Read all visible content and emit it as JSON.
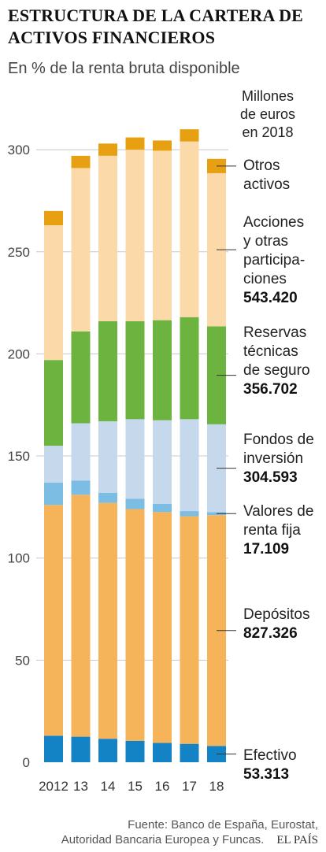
{
  "title": "ESTRUCTURA DE LA CARTERA DE ACTIVOS FINANCIEROS",
  "subtitle": "En % de la renta bruta disponible",
  "right_header": [
    "Millones",
    "de euros",
    "en 2018"
  ],
  "source_line1": "Fuente: Banco de España, Eurostat,",
  "source_line2": "Autoridad Bancaria Europea y Funcas.",
  "brand": "EL PAÍS",
  "chart_data": {
    "type": "bar",
    "stacked": true,
    "categories": [
      "2012",
      "13",
      "14",
      "15",
      "16",
      "17",
      "18"
    ],
    "ylim": [
      0,
      300
    ],
    "yticks": [
      0,
      50,
      100,
      150,
      200,
      250,
      300
    ],
    "grid": true,
    "series": [
      {
        "name": "Efectivo",
        "amount_2018": "53.313",
        "color": "#1483c6",
        "values": [
          13,
          12.5,
          11.5,
          10.5,
          9.5,
          9,
          8
        ]
      },
      {
        "name": "Depósitos",
        "amount_2018": "827.326",
        "color": "#f5b45a",
        "values": [
          113,
          118.5,
          115.5,
          113.5,
          113,
          111.5,
          113
        ]
      },
      {
        "name": "Valores de renta fija",
        "amount_2018": "17.109",
        "color": "#7bbde3",
        "values": [
          11,
          7,
          5,
          5,
          4,
          2.5,
          1.5
        ]
      },
      {
        "name": "Fondos de inversión",
        "amount_2018": "304.593",
        "color": "#c6d9ec",
        "values": [
          18,
          28,
          35,
          39,
          41,
          45,
          43
        ]
      },
      {
        "name": "Reservas técnicas de seguro",
        "amount_2018": "356.702",
        "color": "#6cb33f",
        "values": [
          42,
          45,
          49,
          48,
          49,
          50,
          48
        ]
      },
      {
        "name": "Acciones y otras participaciones",
        "amount_2018": "543.420",
        "color": "#fcd9a8",
        "values": [
          66,
          80,
          81,
          84,
          83,
          86,
          75
        ]
      },
      {
        "name": "Otros activos",
        "amount_2018": "",
        "color": "#e8a013",
        "values": [
          7,
          6,
          6,
          6,
          5,
          6,
          7
        ]
      }
    ],
    "legend_labels": [
      {
        "lines": [
          "Otros",
          "activos"
        ],
        "value": ""
      },
      {
        "lines": [
          "Acciones",
          "y otras",
          "participa-",
          "ciones"
        ],
        "value": "543.420"
      },
      {
        "lines": [
          "Reservas",
          "técnicas",
          "de seguro"
        ],
        "value": "356.702"
      },
      {
        "lines": [
          "Fondos de",
          "inversión"
        ],
        "value": "304.593"
      },
      {
        "lines": [
          "Valores de",
          "renta fija"
        ],
        "value": "17.109"
      },
      {
        "lines": [
          "Depósitos"
        ],
        "value": "827.326"
      },
      {
        "lines": [
          "Efectivo"
        ],
        "value": "53.313"
      }
    ]
  }
}
